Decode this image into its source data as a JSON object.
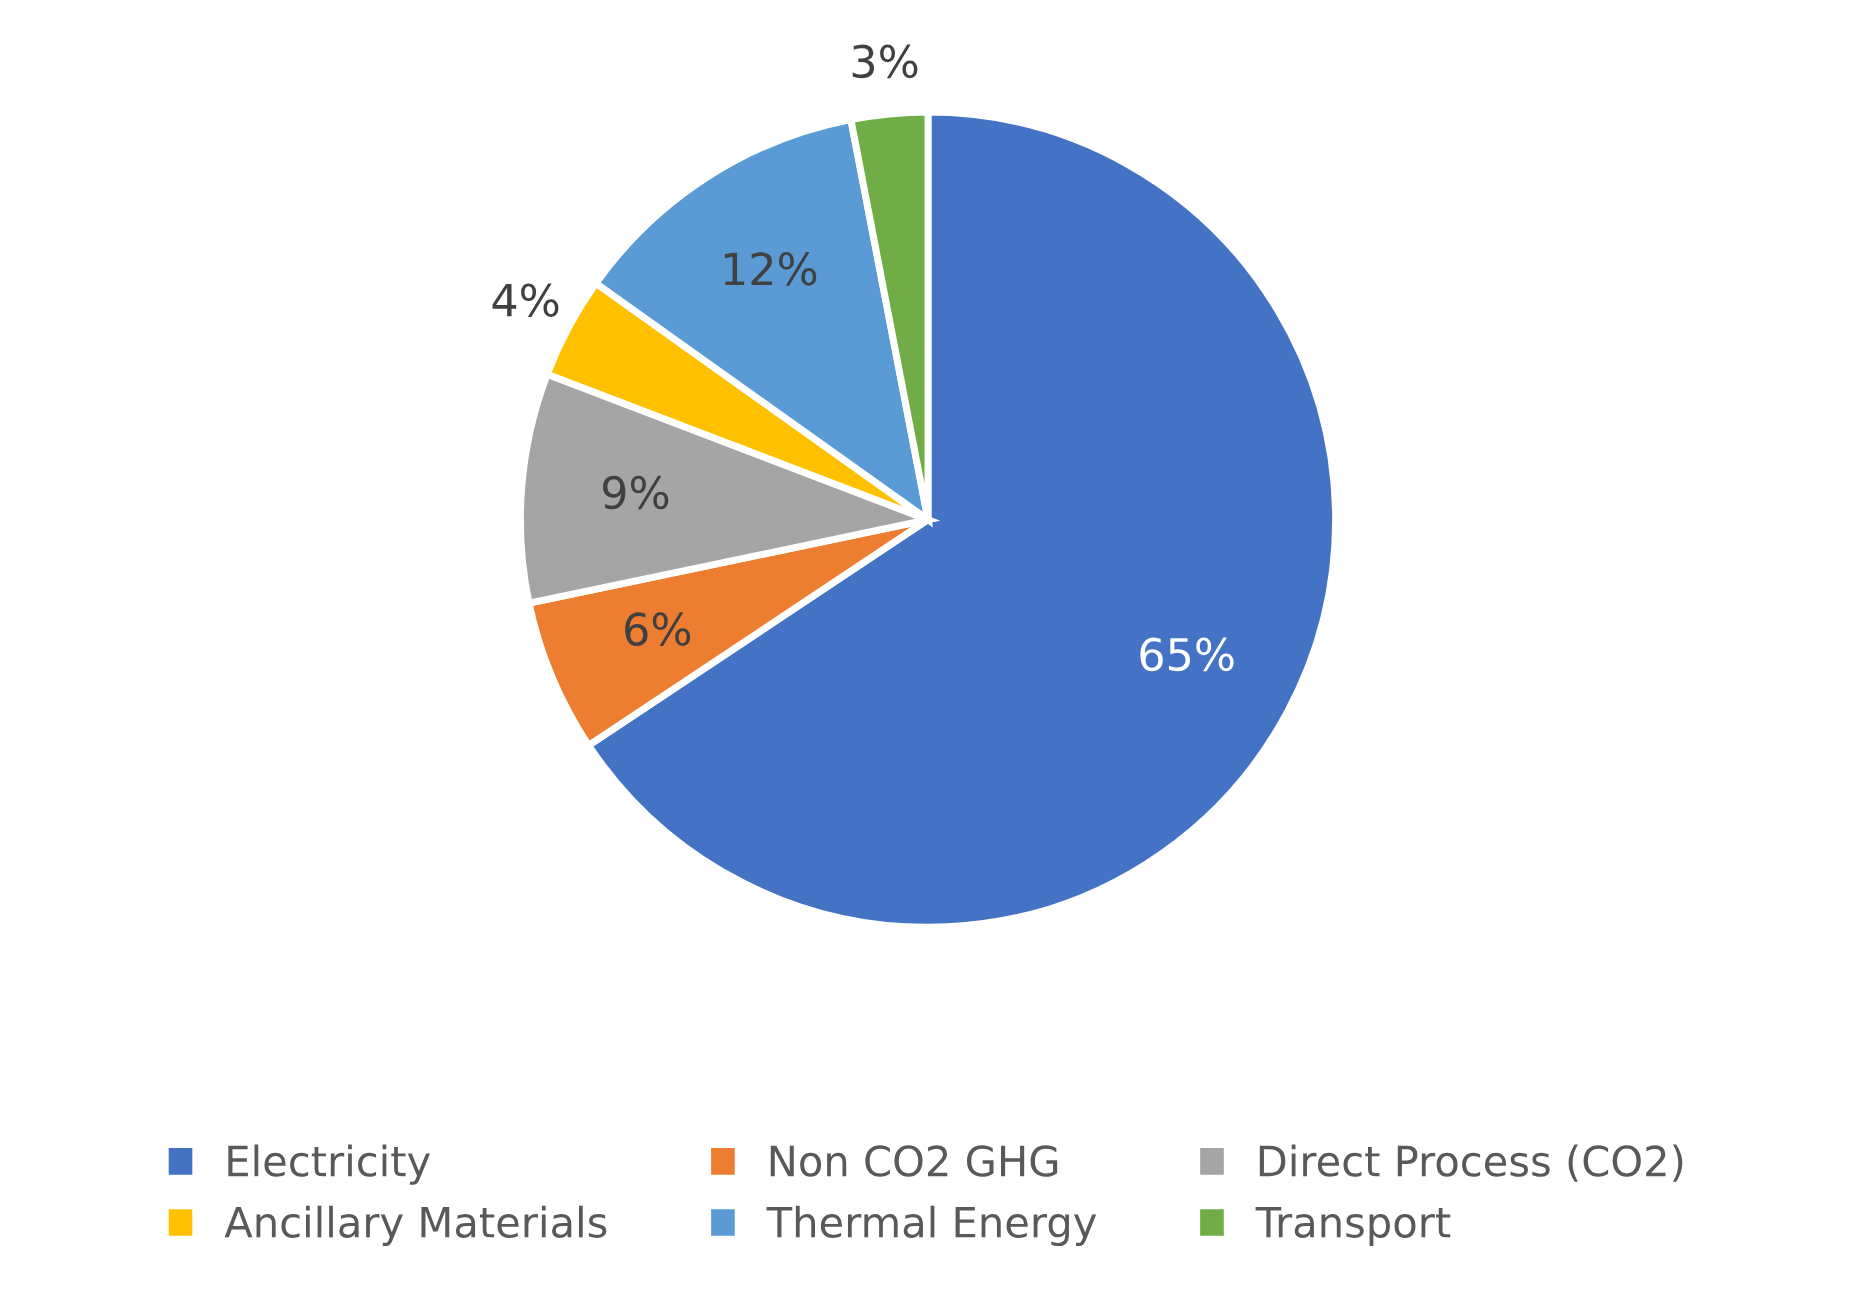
{
  "chart_data": {
    "type": "pie",
    "categories": [
      "Electricity",
      "Non CO2 GHG",
      "Direct Process (CO2)",
      "Ancillary Materials",
      "Thermal Energy",
      "Transport"
    ],
    "values": [
      65,
      6,
      9,
      4,
      12,
      3
    ],
    "value_labels": [
      "65%",
      "6%",
      "9%",
      "4%",
      "12%",
      "3%"
    ],
    "colors": [
      "#4472c4",
      "#ed7d31",
      "#a5a5a5",
      "#ffc000",
      "#5b9bd5",
      "#70ad47"
    ],
    "legend": "bottom"
  }
}
